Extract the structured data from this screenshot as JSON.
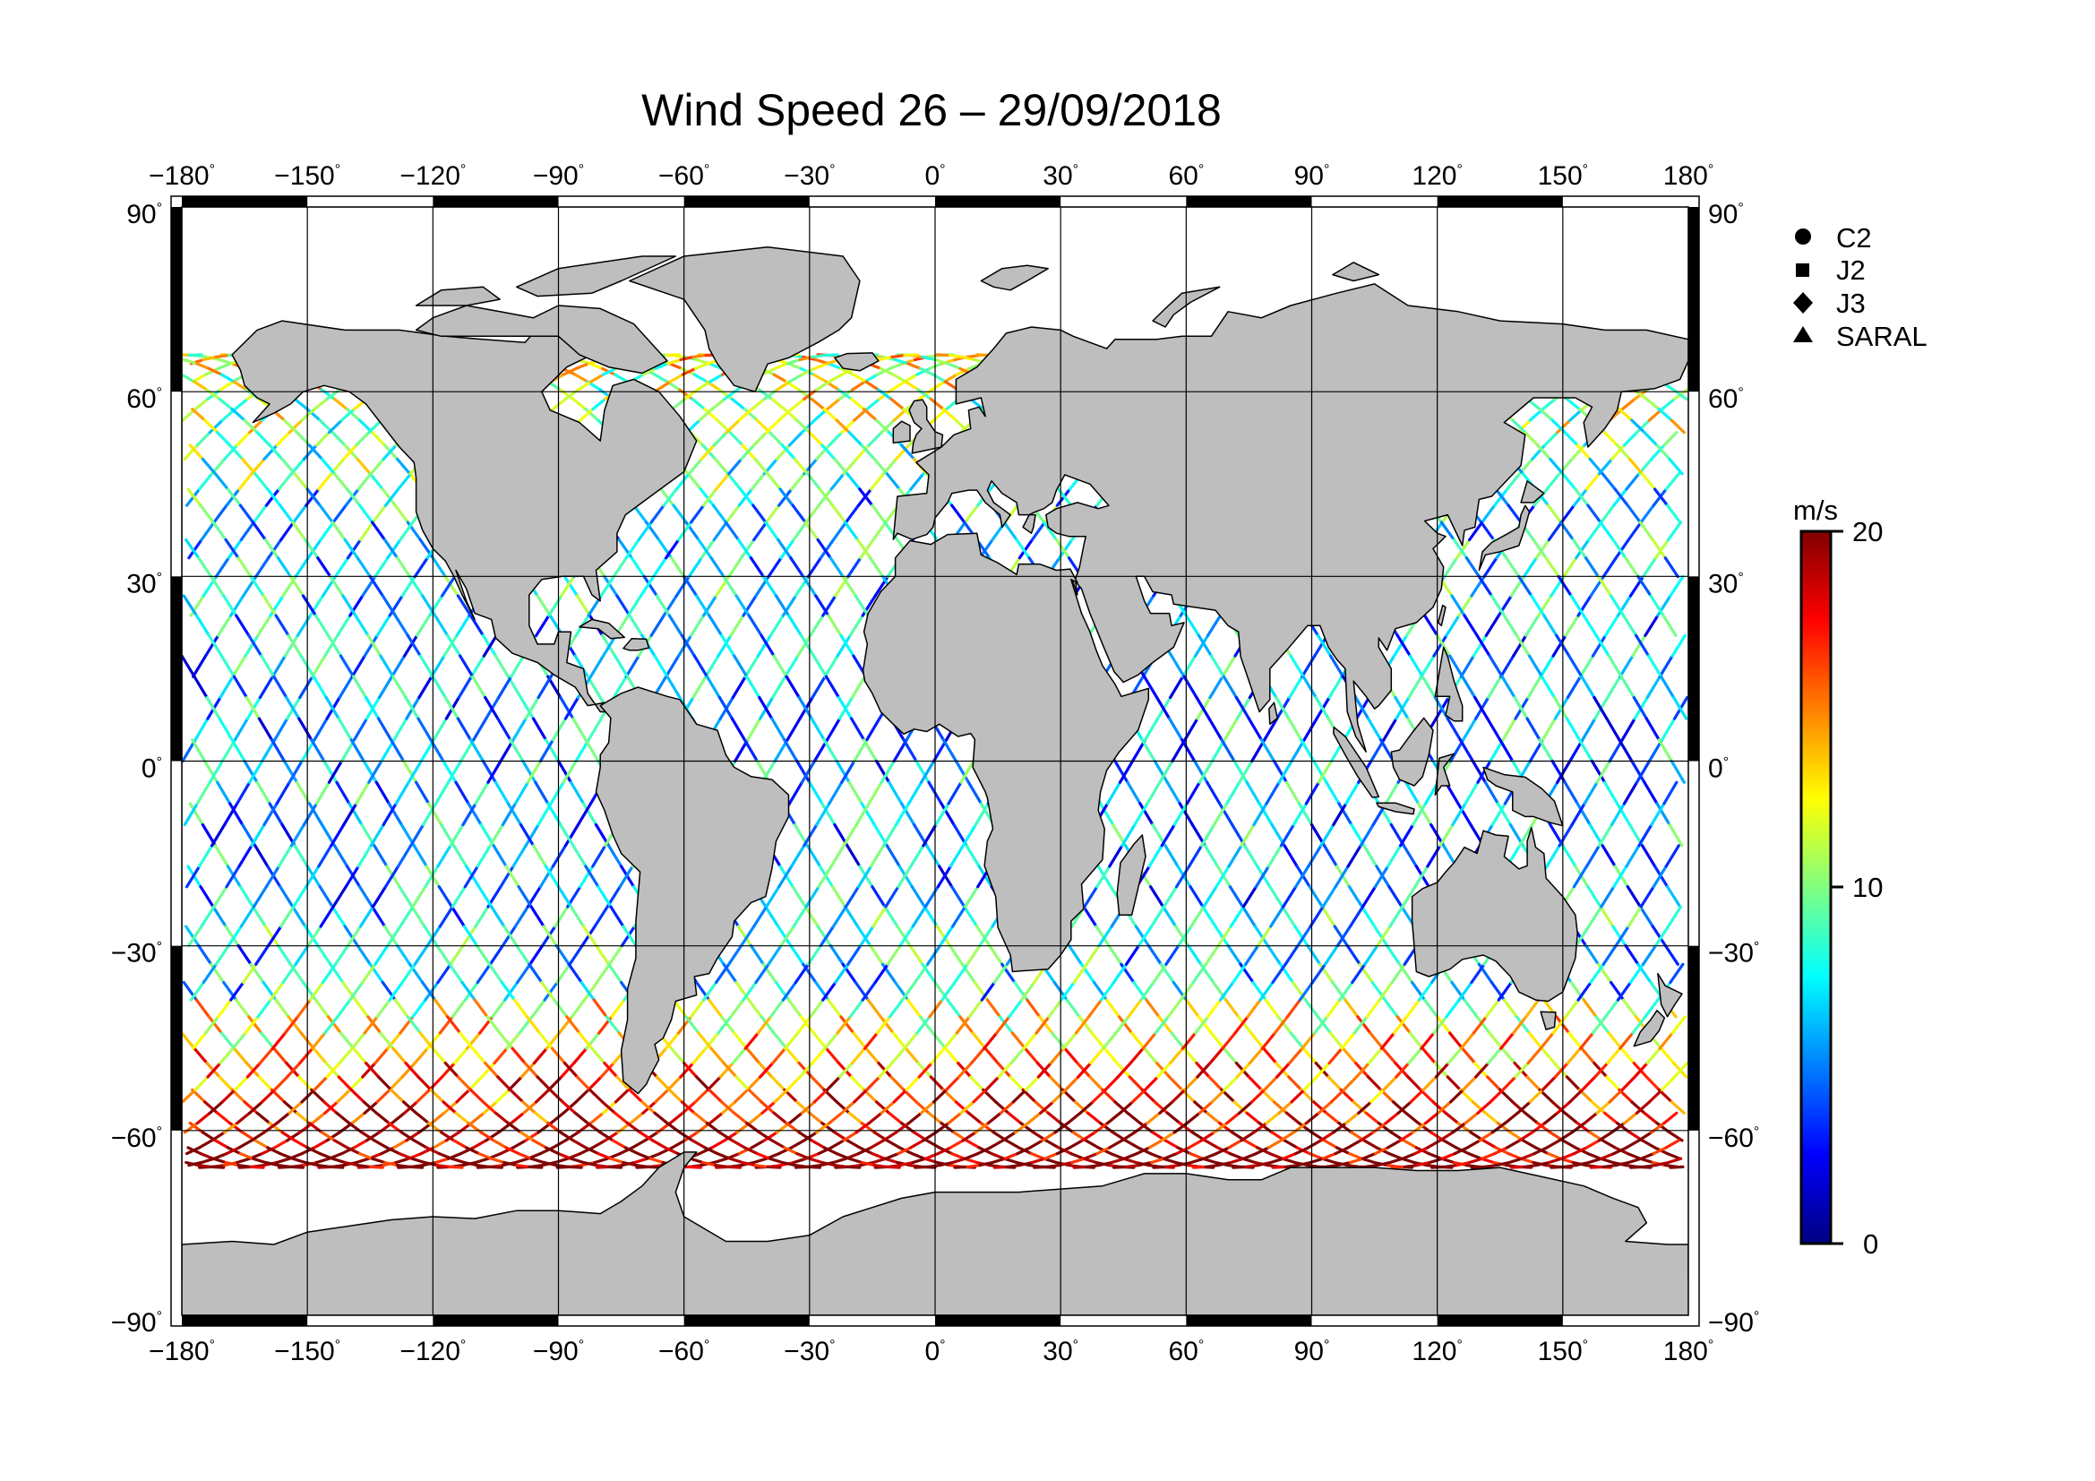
{
  "title": "Wind Speed 26 – 29/09/2018",
  "map": {
    "projection": "equirectangular",
    "lon_range": [
      -180,
      180
    ],
    "lat_range": [
      -90,
      90
    ],
    "lon_ticks": [
      -180,
      -150,
      -120,
      -90,
      -60,
      -30,
      0,
      30,
      60,
      90,
      120,
      150,
      180
    ],
    "lat_ticks": [
      90,
      60,
      30,
      0,
      -30,
      -60,
      -90
    ],
    "lon_tick_labels": [
      "−180",
      "−150",
      "−120",
      "−90",
      "−60",
      "−30",
      "0",
      "30",
      "60",
      "90",
      "120",
      "150",
      "180"
    ],
    "lat_tick_labels": [
      "90",
      "60",
      "30",
      "0",
      "−30",
      "−60",
      "−90"
    ],
    "degree_symbol": "°",
    "land_color": "#bebebe",
    "ocean_color": "#ffffff",
    "grid": true
  },
  "legend": {
    "placement": "right",
    "items": [
      {
        "label": "C2",
        "marker": "circle"
      },
      {
        "label": "J2",
        "marker": "square"
      },
      {
        "label": "J3",
        "marker": "diamond"
      },
      {
        "label": "SARAL",
        "marker": "triangle"
      }
    ]
  },
  "colorbar": {
    "unit": "m/s",
    "min": 0,
    "max": 20,
    "tick_labels": [
      "20",
      "10",
      "0"
    ],
    "colors": [
      "#000080",
      "#0000ff",
      "#0080ff",
      "#00ffff",
      "#80ff80",
      "#ffff00",
      "#ff8000",
      "#ff0000",
      "#800000"
    ]
  },
  "tracks": {
    "description": "satellite altimeter ground tracks colored by wind speed",
    "lat_coverage": [
      -66,
      66
    ]
  }
}
